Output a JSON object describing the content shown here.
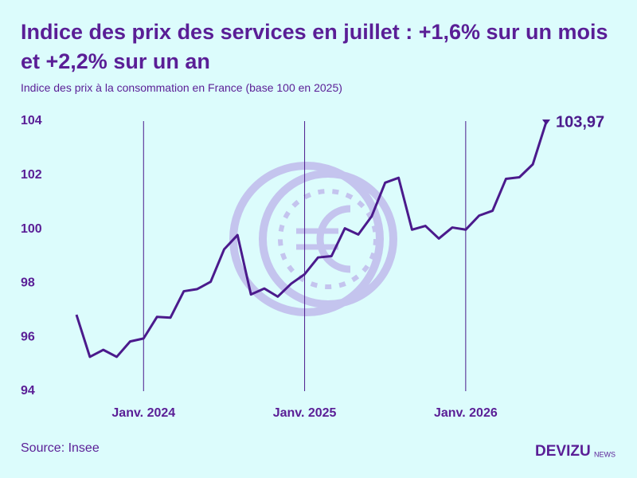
{
  "chart_data": {
    "type": "line",
    "title": "Indice des prix des services en juillet : +1,6% sur un mois et +2,2% sur un an",
    "subtitle": "Indice des prix à la consommation en France (base 100 en 2025)",
    "categories": [
      null,
      null,
      null,
      null,
      null,
      "Janv. 2024",
      null,
      null,
      null,
      null,
      null,
      null,
      null,
      null,
      null,
      null,
      null,
      "Janv. 2025",
      null,
      null,
      null,
      null,
      null,
      null,
      null,
      null,
      null,
      null,
      null,
      "Janv. 2026",
      null,
      null,
      null,
      null,
      null,
      null
    ],
    "series": [
      {
        "name": "Indice des prix des services",
        "color": "#4b1a8c",
        "values": [
          96.83,
          95.27,
          95.53,
          95.27,
          95.84,
          95.95,
          96.75,
          96.72,
          97.7,
          97.78,
          98.05,
          99.25,
          99.78,
          97.58,
          97.8,
          97.5,
          97.98,
          98.33,
          98.95,
          99.0,
          100.03,
          99.8,
          100.48,
          101.72,
          101.9,
          99.98,
          100.12,
          99.65,
          100.06,
          99.98,
          100.5,
          100.68,
          101.86,
          101.92,
          102.4,
          103.97
        ],
        "value_labels": [
          null,
          null,
          null,
          null,
          null,
          null,
          null,
          null,
          null,
          null,
          null,
          null,
          null,
          null,
          null,
          null,
          null,
          null,
          null,
          null,
          null,
          null,
          null,
          null,
          null,
          null,
          null,
          null,
          null,
          null,
          null,
          null,
          null,
          null,
          null,
          "103,97"
        ]
      }
    ],
    "ylim": [
      94,
      104
    ],
    "yticks": [
      94,
      96,
      98,
      100,
      102,
      104
    ],
    "source": "Source: Insee"
  },
  "logo": {
    "brand": "DEVIZU",
    "suffix": "NEWS"
  }
}
